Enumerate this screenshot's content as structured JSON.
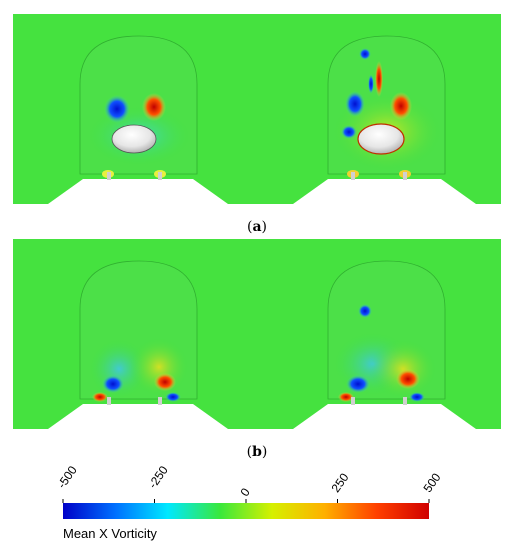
{
  "panels": [
    {
      "caption_open": "(",
      "caption_letter": "a",
      "caption_close": ")"
    },
    {
      "caption_open": "(",
      "caption_letter": "b",
      "caption_close": ")"
    }
  ],
  "colorbar": {
    "title": "Mean X Vorticity",
    "ticks": [
      "-500",
      "-250",
      "0",
      "250",
      "500"
    ],
    "colors": [
      "#0000c8",
      "#0070ff",
      "#00e8ff",
      "#39e83c",
      "#d6f000",
      "#ffb000",
      "#ff4000",
      "#d00000"
    ]
  }
}
